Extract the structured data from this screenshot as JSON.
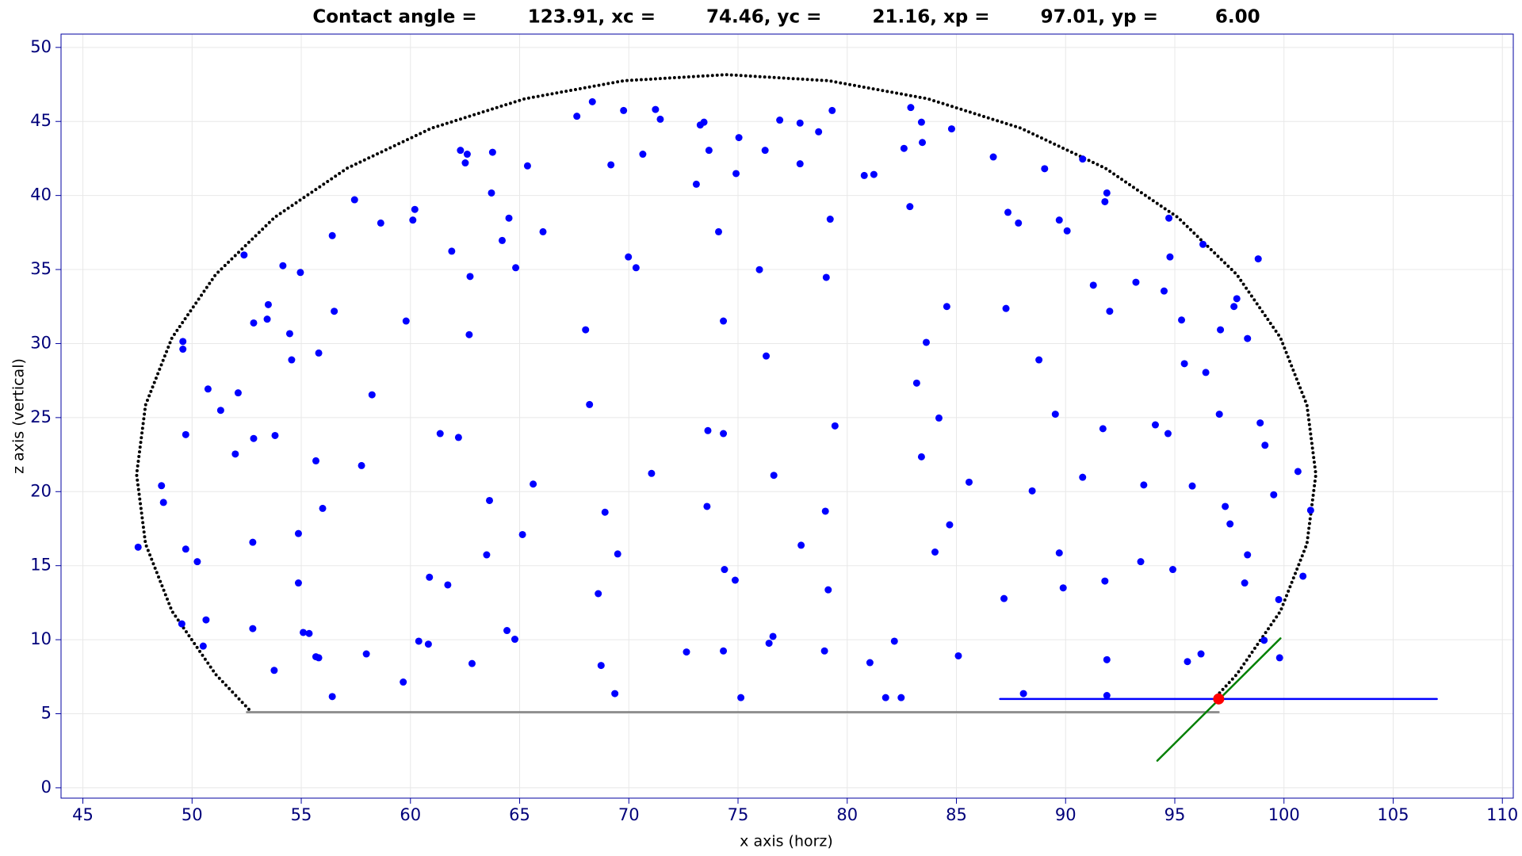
{
  "chart_data": {
    "type": "scatter",
    "title": "Contact angle =        123.91, xc =        74.46, yc =        21.16, xp =        97.01, yp =         6.00",
    "xlabel": "x axis (horz)",
    "ylabel": "z axis (vertical)",
    "xlim": [
      44,
      110.5
    ],
    "ylim": [
      -0.7,
      50.9
    ],
    "xticks": [
      45,
      50,
      55,
      60,
      65,
      70,
      75,
      80,
      85,
      90,
      95,
      100,
      105,
      110
    ],
    "yticks": [
      0,
      5,
      10,
      15,
      20,
      25,
      30,
      35,
      40,
      45,
      50
    ],
    "grid": true,
    "series": [
      {
        "type": "line",
        "color": "#000000",
        "linestyle": "dotted",
        "x": [
          52.6,
          51.08,
          49.08,
          47.87,
          47.46,
          47.87,
          49.08,
          51.08,
          53.78,
          57.1,
          60.96,
          65.23,
          69.77,
          74.46,
          79.15,
          83.69,
          87.96,
          91.82,
          95.14,
          97.84,
          99.84,
          101.05,
          101.46,
          101.05,
          99.84,
          97.84,
          96.84
        ],
        "values": [
          5.3,
          7.66,
          11.93,
          16.47,
          21.16,
          25.85,
          30.39,
          34.66,
          38.52,
          41.84,
          44.54,
          46.53,
          47.75,
          48.16,
          47.75,
          46.53,
          44.54,
          41.84,
          38.52,
          34.66,
          30.39,
          25.85,
          21.16,
          16.47,
          11.93,
          7.66,
          6.07
        ]
      },
      {
        "type": "line",
        "color": "#808080",
        "linestyle": "solid",
        "x": [
          52.51,
          97.01
        ],
        "values": [
          5.11,
          5.11
        ]
      },
      {
        "type": "scatter",
        "color": "#0000ff",
        "x": [
          47.53,
          48.6,
          48.69,
          49.58,
          49.58,
          49.71,
          49.71,
          49.53,
          50.24,
          50.51,
          50.64,
          50.73,
          51.31,
          51.98,
          52.11,
          52.38,
          52.82,
          52.82,
          52.78,
          52.78,
          53.49,
          53.44,
          53.8,
          53.76,
          54.16,
          54.47,
          54.56,
          54.96,
          54.87,
          54.87,
          55.09,
          55.36,
          55.67,
          55.8,
          55.67,
          55.8,
          55.98,
          56.42,
          56.51,
          56.42,
          57.44,
          57.76,
          57.98,
          58.24,
          58.64,
          59.67,
          59.8,
          60.11,
          60.2,
          60.38,
          60.82,
          60.87,
          61.36,
          61.71,
          61.89,
          62.2,
          62.29,
          62.51,
          62.6,
          62.73,
          62.69,
          62.82,
          63.49,
          63.62,
          63.71,
          63.76,
          64.2,
          64.42,
          64.51,
          64.78,
          64.82,
          65.13,
          65.36,
          65.62,
          66.07,
          67.62,
          68.02,
          68.2,
          68.33,
          68.6,
          68.73,
          68.91,
          69.18,
          69.36,
          69.49,
          69.76,
          69.98,
          70.33,
          70.64,
          71.04,
          71.22,
          71.44,
          72.64,
          73.09,
          73.27,
          73.44,
          73.58,
          73.62,
          73.67,
          74.11,
          74.33,
          74.33,
          74.38,
          74.33,
          74.87,
          74.91,
          75.04,
          75.13,
          75.98,
          76.24,
          76.29,
          76.42,
          76.6,
          76.64,
          76.91,
          77.84,
          77.84,
          77.89,
          78.69,
          78.96,
          79.0,
          79.04,
          79.13,
          79.22,
          79.31,
          79.44,
          80.78,
          81.04,
          81.22,
          81.76,
          82.16,
          82.47,
          82.6,
          82.87,
          82.91,
          83.18,
          83.4,
          83.44,
          83.4,
          83.62,
          84.02,
          84.2,
          84.56,
          84.69,
          84.78,
          85.09,
          85.58,
          86.69,
          87.18,
          87.27,
          87.36,
          87.84,
          88.07,
          88.47,
          88.78,
          89.04,
          89.53,
          89.71,
          89.71,
          89.89,
          90.07,
          90.78,
          90.78,
          91.27,
          91.71,
          91.8,
          91.89,
          91.8,
          91.89,
          91.89,
          92.02,
          93.22,
          93.44,
          93.58,
          94.11,
          94.51,
          94.73,
          94.69,
          94.78,
          94.91,
          95.31,
          95.44,
          95.58,
          95.8,
          96.2,
          96.29,
          96.42,
          97.09,
          97.04,
          97.31,
          97.53,
          97.71,
          97.84,
          98.2,
          98.33,
          98.33,
          98.82,
          98.91,
          99.09,
          99.13,
          99.53,
          99.76,
          99.8,
          100.64,
          100.87,
          101.22
        ],
        "values": [
          16.25,
          20.4,
          19.27,
          30.14,
          29.62,
          23.85,
          16.12,
          11.07,
          15.27,
          9.57,
          11.34,
          26.93,
          25.49,
          22.54,
          26.67,
          35.98,
          31.39,
          23.59,
          16.58,
          10.75,
          32.63,
          31.65,
          23.79,
          7.93,
          35.26,
          30.67,
          28.9,
          34.8,
          17.17,
          13.83,
          10.49,
          10.42,
          22.08,
          29.36,
          8.85,
          8.78,
          18.87,
          37.29,
          32.18,
          6.16,
          39.71,
          21.76,
          9.04,
          26.54,
          38.14,
          7.14,
          31.52,
          38.34,
          39.06,
          9.9,
          9.7,
          14.22,
          23.92,
          13.7,
          36.24,
          23.66,
          43.05,
          42.2,
          42.79,
          34.53,
          30.6,
          8.39,
          15.73,
          19.4,
          40.17,
          42.92,
          36.96,
          10.62,
          38.47,
          10.03,
          35.12,
          17.1,
          42.0,
          20.51,
          37.55,
          45.35,
          30.93,
          25.88,
          46.33,
          13.11,
          8.26,
          18.61,
          42.07,
          6.36,
          15.79,
          45.74,
          35.85,
          35.12,
          42.79,
          21.23,
          45.81,
          45.15,
          9.17,
          40.76,
          44.76,
          44.95,
          19.0,
          24.12,
          43.05,
          37.55,
          31.52,
          23.92,
          14.74,
          9.24,
          14.02,
          41.48,
          43.91,
          6.09,
          34.99,
          43.05,
          29.16,
          9.76,
          10.22,
          21.1,
          45.09,
          44.89,
          42.14,
          16.38,
          44.3,
          9.24,
          18.68,
          34.47,
          13.37,
          38.4,
          45.74,
          24.44,
          41.35,
          8.45,
          41.42,
          6.09,
          9.9,
          6.09,
          43.18,
          39.25,
          45.94,
          27.33,
          44.95,
          43.58,
          22.35,
          30.08,
          15.92,
          24.97,
          32.5,
          17.76,
          44.5,
          8.91,
          20.64,
          42.6,
          12.78,
          32.37,
          38.86,
          38.14,
          6.36,
          20.05,
          28.9,
          41.81,
          25.23,
          38.34,
          15.86,
          13.5,
          37.61,
          42.46,
          20.97,
          33.94,
          24.25,
          39.58,
          40.17,
          13.96,
          8.65,
          6.23,
          32.18,
          34.14,
          15.27,
          20.45,
          24.51,
          33.55,
          38.47,
          23.92,
          35.85,
          14.74,
          31.59,
          28.64,
          8.52,
          20.38,
          9.04,
          36.7,
          28.05,
          30.93,
          25.23,
          19.0,
          17.82,
          32.5,
          33.03,
          13.83,
          15.73,
          30.34,
          35.72,
          24.64,
          9.96,
          23.13,
          19.79,
          12.71,
          8.78,
          21.36,
          14.29,
          18.74
        ]
      },
      {
        "type": "line",
        "color": "#0000ff",
        "linestyle": "solid",
        "x": [
          87.0,
          107.0
        ],
        "values": [
          6.0,
          6.0
        ]
      },
      {
        "type": "line",
        "color": "#008000",
        "linestyle": "solid",
        "x": [
          94.2,
          99.84
        ],
        "values": [
          1.83,
          10.09
        ]
      },
      {
        "type": "scatter",
        "color": "#ff0000",
        "x": [
          97.01
        ],
        "values": [
          6.0
        ]
      }
    ]
  }
}
